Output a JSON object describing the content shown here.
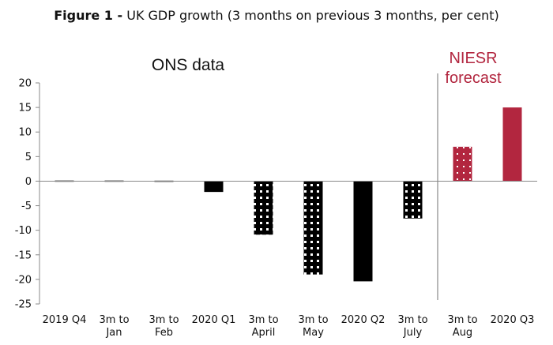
{
  "title": {
    "prefix": "Figure 1 -",
    "text": "UK GDP growth (3 months on previous 3 months, per cent)"
  },
  "colors": {
    "ons": "#000000",
    "niesr": "#b2263f",
    "pattern_dot": "#ffffff",
    "axis": "#888888",
    "text": "#111111"
  },
  "chart_data": {
    "type": "bar",
    "title": "Figure 1 - UK GDP growth (3 months on previous 3 months, per cent)",
    "xlabel": "",
    "ylabel": "",
    "ylim": [
      -25,
      20
    ],
    "yticks": [
      20,
      15,
      10,
      5,
      0,
      -5,
      -10,
      -15,
      -20,
      -25
    ],
    "grid": false,
    "categories": [
      [
        "2019 Q4"
      ],
      [
        "3m to",
        "Jan"
      ],
      [
        "3m to",
        "Feb"
      ],
      [
        "2020 Q1"
      ],
      [
        "3m to",
        "April"
      ],
      [
        "3m to",
        "May"
      ],
      [
        "2020 Q2"
      ],
      [
        "3m to",
        "July"
      ],
      [
        "3m to",
        "Aug"
      ],
      [
        "2020 Q3"
      ]
    ],
    "values": [
      0.0,
      0.0,
      0.1,
      -2.2,
      -10.9,
      -19.0,
      -20.4,
      -7.6,
      7.0,
      15.0
    ],
    "bar_styles": [
      "solid",
      "solid",
      "solid",
      "solid",
      "dotted",
      "dotted",
      "solid",
      "dotted",
      "dotted",
      "solid"
    ],
    "sources": [
      "ons",
      "ons",
      "ons",
      "ons",
      "ons",
      "ons",
      "ons",
      "ons",
      "niesr",
      "niesr"
    ],
    "annotations": {
      "ons": "ONS data",
      "niesr_line1": "NIESR",
      "niesr_line2": "forecast"
    }
  }
}
